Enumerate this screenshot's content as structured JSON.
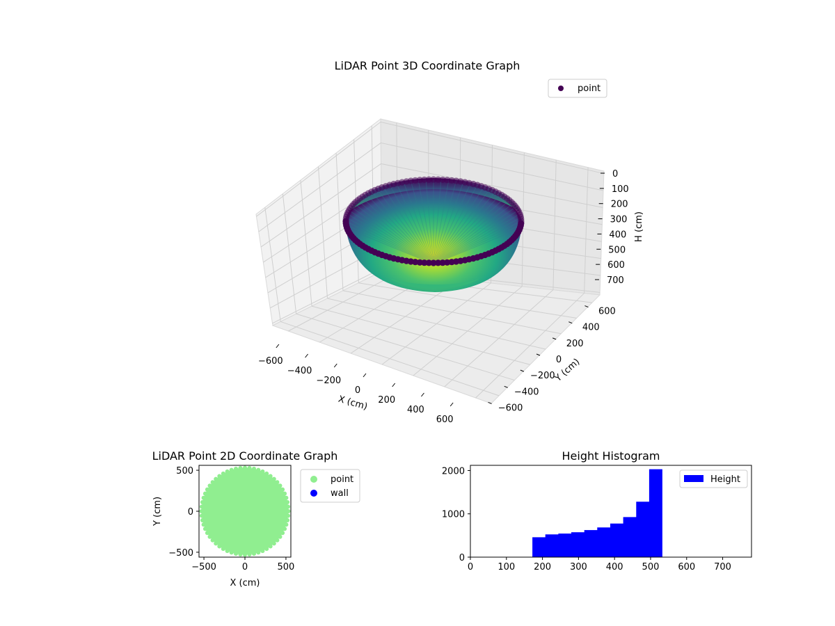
{
  "chart_data": [
    {
      "id": "lidar-3d",
      "type": "scatter",
      "title": "LiDAR Point 3D Coordinate Graph",
      "xlabel": "X (cm)",
      "ylabel": "Y (cm)",
      "zlabel": "H (cm)",
      "x_ticks": [
        "−600",
        "−400",
        "−200",
        "0",
        "200",
        "400",
        "600"
      ],
      "y_ticks": [
        "−600",
        "−400",
        "−200",
        "0",
        "200",
        "400",
        "600"
      ],
      "z_ticks": [
        "0",
        "100",
        "200",
        "300",
        "400",
        "500",
        "600",
        "700"
      ],
      "xlim": [
        -650,
        650
      ],
      "ylim": [
        -650,
        650
      ],
      "zlim": [
        0,
        750
      ],
      "z_inverted": true,
      "legend": [
        {
          "label": "point",
          "color": "#440154"
        }
      ],
      "shape": {
        "form": "bowl",
        "rim_radius": 520,
        "rim_height": 300,
        "bottom_height": 540
      },
      "colormap": "viridis"
    },
    {
      "id": "lidar-2d",
      "type": "scatter",
      "title": "LiDAR Point 2D Coordinate Graph",
      "xlabel": "X (cm)",
      "ylabel": "Y (cm)",
      "x_ticks": [
        "−500",
        "0",
        "500"
      ],
      "y_ticks": [
        "500",
        "0",
        "−500"
      ],
      "xlim": [
        -560,
        560
      ],
      "ylim": [
        -560,
        560
      ],
      "series": [
        {
          "name": "point",
          "color": "#90ee90",
          "shape": "disk",
          "center": [
            0,
            0
          ],
          "radius": 530
        },
        {
          "name": "wall",
          "color": "#0000ff",
          "points": []
        }
      ],
      "legend": [
        {
          "label": "point",
          "color": "#90ee90"
        },
        {
          "label": "wall",
          "color": "#0000ff"
        }
      ]
    },
    {
      "id": "height-histogram",
      "type": "bar",
      "title": "Height Histogram",
      "xlabel": "",
      "ylabel": "",
      "x_ticks": [
        "0",
        "100",
        "200",
        "300",
        "400",
        "500",
        "600",
        "700"
      ],
      "y_ticks": [
        "0",
        "1000",
        "2000"
      ],
      "xlim": [
        0,
        780
      ],
      "ylim": [
        0,
        2120
      ],
      "bins": [
        {
          "start": 172,
          "end": 208,
          "count": 460
        },
        {
          "start": 208,
          "end": 244,
          "count": 525
        },
        {
          "start": 244,
          "end": 280,
          "count": 545
        },
        {
          "start": 280,
          "end": 316,
          "count": 575
        },
        {
          "start": 316,
          "end": 352,
          "count": 625
        },
        {
          "start": 352,
          "end": 388,
          "count": 685
        },
        {
          "start": 388,
          "end": 424,
          "count": 775
        },
        {
          "start": 424,
          "end": 460,
          "count": 925
        },
        {
          "start": 460,
          "end": 496,
          "count": 1280
        },
        {
          "start": 496,
          "end": 532,
          "count": 2030
        }
      ],
      "color": "#0000ff",
      "legend": [
        {
          "label": "Height",
          "color": "#0000ff"
        }
      ]
    }
  ]
}
